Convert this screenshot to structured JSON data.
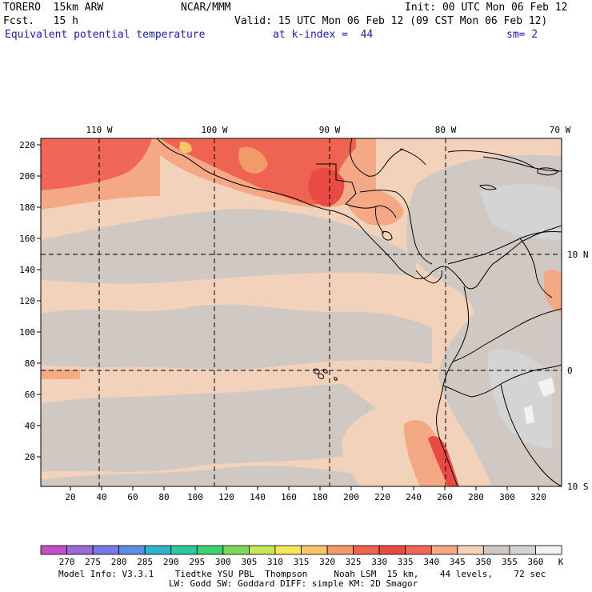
{
  "header": {
    "model": "TORERO  15km ARW",
    "center": "NCAR/MMM",
    "init": "Init: 00 UTC Mon 06 Feb 12",
    "fcst": "Fcst.   15 h",
    "valid": "Valid: 15 UTC Mon 06 Feb 12 (09 CST Mon 06 Feb 12)",
    "field": "Equivalent potential temperature",
    "level": "at k-index =  44",
    "smoothing": "sm= 2"
  },
  "map": {
    "lon_labels": [
      "110 W",
      "100 W",
      "90 W",
      "80 W",
      "70 W"
    ],
    "lat_labels": [
      "10 N",
      "0",
      "10 S"
    ],
    "y_ticks": [
      "220",
      "200",
      "180",
      "160",
      "140",
      "120",
      "100",
      "80",
      "60",
      "40",
      "20"
    ],
    "x_ticks": [
      "20",
      "40",
      "60",
      "80",
      "100",
      "120",
      "140",
      "160",
      "180",
      "200",
      "220",
      "240",
      "260",
      "280",
      "300",
      "320"
    ]
  },
  "colorbar": {
    "unit": "K",
    "levels": [
      "270",
      "275",
      "280",
      "285",
      "290",
      "295",
      "300",
      "305",
      "310",
      "315",
      "320",
      "325",
      "330",
      "335",
      "340",
      "345",
      "350",
      "355",
      "360"
    ],
    "colors": [
      "#c44ec4",
      "#9a6ad8",
      "#7878e6",
      "#5c8ee6",
      "#30b4c8",
      "#2ec8a0",
      "#3cd06e",
      "#7ed85a",
      "#c6e65a",
      "#f2e65e",
      "#f6c66a",
      "#f29a6a",
      "#ee6450",
      "#ea4a44",
      "#f06658",
      "#f4a884",
      "#f2d2ba",
      "#d0c8c2",
      "#d4d4d4",
      "#f2f2f2"
    ]
  },
  "footer": {
    "line1": "Model Info: V3.3.1    Tiedtke YSU PBL  Thompson     Noah LSM  15 km,    44 levels,    72 sec",
    "line2": "LW: Godd SW: Goddard DIFF: simple KM: 2D Smagor"
  }
}
